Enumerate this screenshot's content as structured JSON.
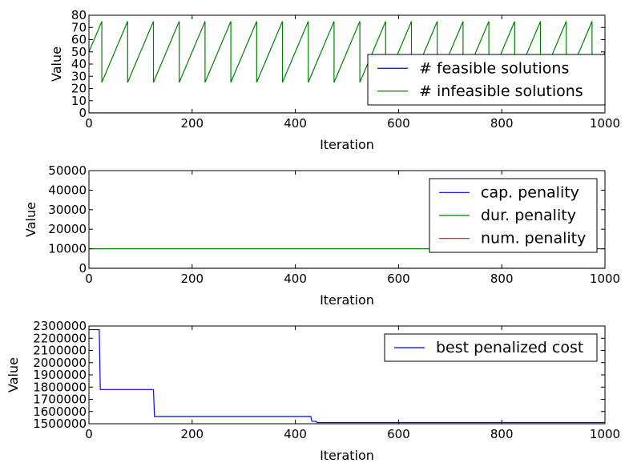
{
  "chart_data": [
    {
      "type": "line",
      "xlabel": "Iteration",
      "ylabel": "Value",
      "xlim": [
        0,
        1000
      ],
      "ylim": [
        0,
        80
      ],
      "xticks": [
        "0",
        "200",
        "400",
        "600",
        "800",
        "1000"
      ],
      "yticks": [
        "0",
        "10",
        "20",
        "30",
        "40",
        "50",
        "60",
        "70",
        "80"
      ],
      "legend": "lower-right",
      "series": [
        {
          "name": "# feasible solutions",
          "color": "#0000ff",
          "x": [
            0,
            1000
          ],
          "y": [
            0,
            0
          ]
        },
        {
          "name": "# infeasible solutions",
          "color": "#008000",
          "x": [
            0,
            25,
            25,
            75,
            75,
            125,
            125,
            175,
            175,
            225,
            225,
            275,
            275,
            325,
            325,
            375,
            375,
            425,
            425,
            475,
            475,
            525,
            525,
            575,
            575,
            625,
            625,
            675,
            675,
            725,
            725,
            775,
            775,
            825,
            825,
            875,
            875,
            925,
            925,
            975,
            975,
            1000
          ],
          "y": [
            50,
            75,
            25,
            75,
            25,
            75,
            25,
            75,
            25,
            75,
            25,
            75,
            25,
            75,
            25,
            75,
            25,
            75,
            25,
            75,
            25,
            75,
            25,
            75,
            25,
            75,
            25,
            75,
            25,
            75,
            25,
            75,
            25,
            75,
            25,
            75,
            25,
            75,
            25,
            75,
            25,
            50
          ]
        }
      ]
    },
    {
      "type": "line",
      "xlabel": "Iteration",
      "ylabel": "Value",
      "xlim": [
        0,
        1000
      ],
      "ylim": [
        0,
        50000
      ],
      "xticks": [
        "0",
        "200",
        "400",
        "600",
        "800",
        "1000"
      ],
      "yticks": [
        "0",
        "10000",
        "20000",
        "30000",
        "40000",
        "50000"
      ],
      "legend": "top-right",
      "series": [
        {
          "name": "cap. penality",
          "color": "#0000ff",
          "x": [
            0,
            1000
          ],
          "y": [
            0,
            0
          ]
        },
        {
          "name": "dur. penality",
          "color": "#008000",
          "x": [
            0,
            1000
          ],
          "y": [
            10000,
            10000
          ]
        },
        {
          "name": "num. penality",
          "color": "#ff0000",
          "x": [
            0,
            1000
          ],
          "y": [
            0,
            0
          ]
        }
      ]
    },
    {
      "type": "line",
      "xlabel": "Iteration",
      "ylabel": "Value",
      "xlim": [
        0,
        1000
      ],
      "ylim": [
        1500000,
        2300000
      ],
      "xticks": [
        "0",
        "200",
        "400",
        "600",
        "800",
        "1000"
      ],
      "yticks": [
        "1500000",
        "1600000",
        "1700000",
        "1800000",
        "1900000",
        "2000000",
        "2100000",
        "2200000",
        "2300000"
      ],
      "legend": "top-right",
      "series": [
        {
          "name": "best penalized cost",
          "color": "#0000ff",
          "x": [
            0,
            20,
            22,
            125,
            127,
            430,
            432,
            440,
            442,
            1000
          ],
          "y": [
            2270000,
            2270000,
            1780000,
            1780000,
            1560000,
            1560000,
            1520000,
            1520000,
            1510000,
            1510000
          ]
        }
      ]
    }
  ]
}
